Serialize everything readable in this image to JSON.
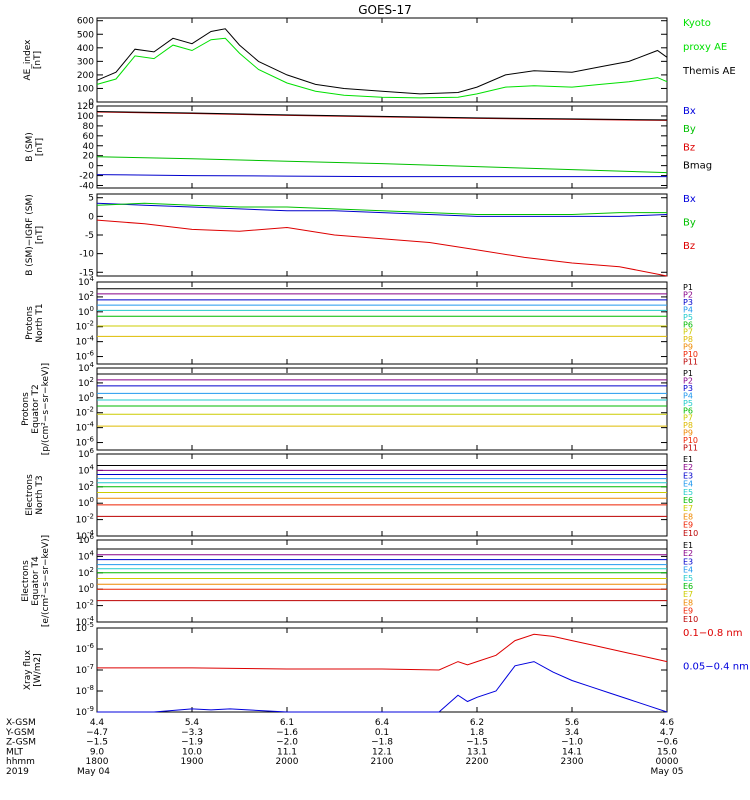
{
  "title": "GOES-17",
  "panels": [
    {
      "id": "ae",
      "ylabel_lines": [
        "AE_index",
        "[nT]"
      ],
      "scale": "linear",
      "ylim": [
        0,
        620
      ],
      "ticks": [
        "600",
        "500",
        "400",
        "300",
        "200",
        "100",
        "0"
      ],
      "tick_values": [
        600,
        500,
        400,
        300,
        200,
        100,
        0
      ],
      "right_labels": [
        {
          "text": "Kyoto",
          "color": "#00e000"
        },
        {
          "text": "proxy AE",
          "color": "#00e000"
        },
        {
          "text": "Themis AE",
          "color": "#000000"
        }
      ]
    },
    {
      "id": "bsm",
      "ylabel_lines": [
        "B (SM)",
        "[nT]"
      ],
      "scale": "linear",
      "ylim": [
        -45,
        120
      ],
      "ticks": [
        "120",
        "100",
        "80",
        "60",
        "40",
        "20",
        "0",
        "-20",
        "-40"
      ],
      "tick_values": [
        120,
        100,
        80,
        60,
        40,
        20,
        0,
        -20,
        -40
      ],
      "right_labels": [
        {
          "text": "Bx",
          "color": "#0000dd"
        },
        {
          "text": "By",
          "color": "#00c000"
        },
        {
          "text": "Bz",
          "color": "#dd0000"
        },
        {
          "text": "Bmag",
          "color": "#000000"
        }
      ]
    },
    {
      "id": "bigrf",
      "ylabel_lines": [
        "B (SM)−IGRF (SM)",
        "[nT]"
      ],
      "scale": "linear",
      "ylim": [
        -16,
        6
      ],
      "ticks": [
        "5",
        "0",
        "-5",
        "-10",
        "-15"
      ],
      "tick_values": [
        5,
        0,
        -5,
        -10,
        -15
      ],
      "right_labels": [
        {
          "text": "Bx",
          "color": "#0000dd"
        },
        {
          "text": "By",
          "color": "#00c000"
        },
        {
          "text": "Bz",
          "color": "#dd0000"
        }
      ]
    },
    {
      "id": "p_t1",
      "ylabel_lines": [
        "Protons",
        "North T1"
      ],
      "scale": "log",
      "ylim_exp": [
        -7,
        4
      ],
      "ticks": [
        "10^4",
        "10^2",
        "10^0",
        "10^-2",
        "10^-4",
        "10^-6"
      ],
      "tick_values": [
        4,
        2,
        0,
        -2,
        -4,
        -6
      ],
      "right_labels": [
        {
          "text": "P1",
          "color": "#000000"
        },
        {
          "text": "P2",
          "color": "#880088"
        },
        {
          "text": "P3",
          "color": "#0000cc"
        },
        {
          "text": "P4",
          "color": "#2299ee"
        },
        {
          "text": "P5",
          "color": "#22cccc"
        },
        {
          "text": "P6",
          "color": "#00bb00"
        },
        {
          "text": "P7",
          "color": "#cccc00"
        },
        {
          "text": "P8",
          "color": "#ddbb00"
        },
        {
          "text": "P9",
          "color": "#ee8800"
        },
        {
          "text": "P10",
          "color": "#ee2200"
        },
        {
          "text": "P11",
          "color": "#bb0000"
        }
      ]
    },
    {
      "id": "p_t2",
      "ylabel_lines": [
        "Protons",
        "Equator T2",
        "[p/(cm²−s−sr−keV)]"
      ],
      "scale": "log",
      "ylim_exp": [
        -7,
        4
      ],
      "ticks": [
        "10^4",
        "10^2",
        "10^0",
        "10^-2",
        "10^-4",
        "10^-6"
      ],
      "tick_values": [
        4,
        2,
        0,
        -2,
        -4,
        -6
      ],
      "right_labels": [
        {
          "text": "P1",
          "color": "#000000"
        },
        {
          "text": "P2",
          "color": "#880088"
        },
        {
          "text": "P3",
          "color": "#0000cc"
        },
        {
          "text": "P4",
          "color": "#2299ee"
        },
        {
          "text": "P5",
          "color": "#22cccc"
        },
        {
          "text": "P6",
          "color": "#00bb00"
        },
        {
          "text": "P7",
          "color": "#cccc00"
        },
        {
          "text": "P8",
          "color": "#ddbb00"
        },
        {
          "text": "P9",
          "color": "#ee8800"
        },
        {
          "text": "P10",
          "color": "#ee2200"
        },
        {
          "text": "P11",
          "color": "#bb0000"
        }
      ]
    },
    {
      "id": "e_t3",
      "ylabel_lines": [
        "Electrons",
        "North T3"
      ],
      "scale": "log",
      "ylim_exp": [
        -4,
        6
      ],
      "ticks": [
        "10^6",
        "10^4",
        "10^2",
        "10^0",
        "10^-2",
        "10^-4"
      ],
      "tick_values": [
        6,
        4,
        2,
        0,
        -2,
        -4
      ],
      "right_labels": [
        {
          "text": "E1",
          "color": "#000000"
        },
        {
          "text": "E2",
          "color": "#880088"
        },
        {
          "text": "E3",
          "color": "#0000cc"
        },
        {
          "text": "E4",
          "color": "#2299ee"
        },
        {
          "text": "E5",
          "color": "#22cccc"
        },
        {
          "text": "E6",
          "color": "#00bb00"
        },
        {
          "text": "E7",
          "color": "#cccc00"
        },
        {
          "text": "E8",
          "color": "#ee8800"
        },
        {
          "text": "E9",
          "color": "#ee2200"
        },
        {
          "text": "E10",
          "color": "#bb0000"
        }
      ]
    },
    {
      "id": "e_t4",
      "ylabel_lines": [
        "Electrons",
        "Equator T4",
        "[e/(cm²−s−sr−keV)]"
      ],
      "scale": "log",
      "ylim_exp": [
        -4,
        6
      ],
      "ticks": [
        "10^6",
        "10^4",
        "10^2",
        "10^0",
        "10^-2",
        "10^-4"
      ],
      "tick_values": [
        6,
        4,
        2,
        0,
        -2,
        -4
      ],
      "right_labels": [
        {
          "text": "E1",
          "color": "#000000"
        },
        {
          "text": "E2",
          "color": "#880088"
        },
        {
          "text": "E3",
          "color": "#0000cc"
        },
        {
          "text": "E4",
          "color": "#2299ee"
        },
        {
          "text": "E5",
          "color": "#22cccc"
        },
        {
          "text": "E6",
          "color": "#00bb00"
        },
        {
          "text": "E7",
          "color": "#cccc00"
        },
        {
          "text": "E8",
          "color": "#ee8800"
        },
        {
          "text": "E9",
          "color": "#ee2200"
        },
        {
          "text": "E10",
          "color": "#bb0000"
        }
      ]
    },
    {
      "id": "xray",
      "ylabel_lines": [
        "Xray flux",
        "[W/m2]"
      ],
      "scale": "log",
      "ylim_exp": [
        -9,
        -5
      ],
      "ticks": [
        "10^-5",
        "10^-6",
        "10^-7",
        "10^-8",
        "10^-9"
      ],
      "tick_values": [
        -5,
        -6,
        -7,
        -8,
        -9
      ],
      "right_labels": [
        {
          "text": "0.1−0.8 nm",
          "color": "#dd0000"
        },
        {
          "text": "0.05−0.4 nm",
          "color": "#0000dd"
        }
      ]
    }
  ],
  "footer": {
    "row_labels": [
      "X-GSM",
      "Y-GSM",
      "Z-GSM",
      "MLT",
      "hhmm",
      "2019"
    ],
    "columns": [
      {
        "values": [
          "4.4",
          "−4.7",
          "−1.5",
          "9.0",
          "1800",
          "May 04"
        ]
      },
      {
        "values": [
          "5.4",
          "−3.3",
          "−1.9",
          "10.0",
          "1900",
          ""
        ]
      },
      {
        "values": [
          "6.1",
          "−1.6",
          "−2.0",
          "11.1",
          "2000",
          ""
        ]
      },
      {
        "values": [
          "6.4",
          "0.1",
          "−1.8",
          "12.1",
          "2100",
          ""
        ]
      },
      {
        "values": [
          "6.2",
          "1.8",
          "−1.5",
          "13.1",
          "2200",
          ""
        ]
      },
      {
        "values": [
          "5.6",
          "3.4",
          "−1.0",
          "14.1",
          "2300",
          ""
        ]
      },
      {
        "values": [
          "4.6",
          "4.7",
          "−0.6",
          "15.0",
          "0000",
          "May 05"
        ]
      }
    ]
  },
  "chart_data": {
    "type": "line",
    "title": "GOES-17",
    "x_unit": "hours since 18:00 UT, 2019 May 04",
    "x_ticks": [
      "1800",
      "1900",
      "2000",
      "2100",
      "2200",
      "2300",
      "0000"
    ],
    "series": [
      {
        "panel": "ae",
        "name": "Themis AE",
        "color": "#000000",
        "x": [
          0,
          0.2,
          0.4,
          0.6,
          0.8,
          1.0,
          1.2,
          1.35,
          1.5,
          1.7,
          2.0,
          2.3,
          2.6,
          3.0,
          3.4,
          3.8,
          4.0,
          4.3,
          4.6,
          5.0,
          5.3,
          5.6,
          5.9,
          6.0
        ],
        "y": [
          160,
          220,
          390,
          370,
          470,
          430,
          520,
          540,
          420,
          300,
          200,
          130,
          100,
          80,
          60,
          70,
          110,
          200,
          230,
          220,
          260,
          300,
          380,
          330
        ]
      },
      {
        "panel": "ae",
        "name": "Kyoto proxy AE",
        "color": "#00e000",
        "x": [
          0,
          0.2,
          0.4,
          0.6,
          0.8,
          1.0,
          1.2,
          1.35,
          1.5,
          1.7,
          2.0,
          2.3,
          2.6,
          3.0,
          3.4,
          3.8,
          4.0,
          4.3,
          4.6,
          5.0,
          5.3,
          5.6,
          5.9,
          6.0
        ],
        "y": [
          130,
          170,
          340,
          320,
          420,
          380,
          460,
          470,
          360,
          240,
          140,
          80,
          50,
          35,
          30,
          35,
          60,
          110,
          120,
          110,
          130,
          150,
          180,
          150
        ]
      },
      {
        "panel": "bsm",
        "name": "Bz",
        "color": "#cc0000",
        "x": [
          0,
          1,
          2,
          3,
          4,
          5,
          6
        ],
        "y": [
          108,
          105,
          101,
          98,
          95,
          93,
          91
        ]
      },
      {
        "panel": "bsm",
        "name": "Bmag",
        "color": "#000000",
        "x": [
          0,
          1,
          2,
          3,
          4,
          5,
          6
        ],
        "y": [
          109,
          106,
          102,
          99,
          96,
          94,
          92
        ]
      },
      {
        "panel": "bsm",
        "name": "By",
        "color": "#00c000",
        "x": [
          0,
          1,
          2,
          3,
          4,
          5,
          6
        ],
        "y": [
          18,
          14,
          9,
          4,
          -2,
          -8,
          -14
        ]
      },
      {
        "panel": "bsm",
        "name": "Bx",
        "color": "#0000cc",
        "x": [
          0,
          1,
          2,
          3,
          4,
          5,
          6
        ],
        "y": [
          -18,
          -20,
          -21,
          -22,
          -22,
          -22,
          -22
        ]
      },
      {
        "panel": "bigrf",
        "name": "Bx",
        "color": "#0000cc",
        "x": [
          0,
          0.5,
          1,
          1.5,
          2,
          2.5,
          3,
          3.5,
          4,
          4.5,
          5,
          5.5,
          6
        ],
        "y": [
          3.5,
          3,
          2.5,
          2,
          1.5,
          1.5,
          1,
          0.5,
          0,
          0,
          0,
          0,
          0.5
        ]
      },
      {
        "panel": "bigrf",
        "name": "By",
        "color": "#00c000",
        "x": [
          0,
          0.5,
          1,
          1.5,
          2,
          2.5,
          3,
          3.5,
          4,
          4.5,
          5,
          5.5,
          6
        ],
        "y": [
          3,
          3.5,
          3,
          2.5,
          2.5,
          2,
          1.5,
          1,
          0.5,
          0.5,
          0.5,
          1,
          1
        ]
      },
      {
        "panel": "bigrf",
        "name": "Bz",
        "color": "#dd0000",
        "x": [
          0,
          0.5,
          1,
          1.5,
          2,
          2.5,
          3,
          3.5,
          4,
          4.5,
          5,
          5.5,
          6
        ],
        "y": [
          -1,
          -2,
          -3.5,
          -4,
          -3,
          -5,
          -6,
          -7,
          -9,
          -11,
          -12.5,
          -13.5,
          -16
        ]
      },
      {
        "panel": "p_t1",
        "name": "P1",
        "color": "#000000",
        "level_exp": 3.1
      },
      {
        "panel": "p_t1",
        "name": "P2",
        "color": "#880088",
        "level_exp": 2.4
      },
      {
        "panel": "p_t1",
        "name": "P3",
        "color": "#0000cc",
        "level_exp": 1.6
      },
      {
        "panel": "p_t1",
        "name": "P4",
        "color": "#2299ee",
        "level_exp": 0.9
      },
      {
        "panel": "p_t1",
        "name": "P5",
        "color": "#22cccc",
        "level_exp": 0.2
      },
      {
        "panel": "p_t1",
        "name": "P6",
        "color": "#00bb00",
        "level_exp": -0.6
      },
      {
        "panel": "p_t1",
        "name": "P7",
        "color": "#cccc00",
        "level_exp": -1.9
      },
      {
        "panel": "p_t1",
        "name": "P8",
        "color": "#ddbb00",
        "level_exp": -3.3
      },
      {
        "panel": "p_t2",
        "name": "P1",
        "color": "#000000",
        "level_exp": 3.2
      },
      {
        "panel": "p_t2",
        "name": "P2",
        "color": "#880088",
        "level_exp": 2.4
      },
      {
        "panel": "p_t2",
        "name": "P3",
        "color": "#0000cc",
        "level_exp": 1.6
      },
      {
        "panel": "p_t2",
        "name": "P4",
        "color": "#2299ee",
        "level_exp": 0.6
      },
      {
        "panel": "p_t2",
        "name": "P5",
        "color": "#22cccc",
        "level_exp": -0.3
      },
      {
        "panel": "p_t2",
        "name": "P6",
        "color": "#00bb00",
        "level_exp": -1.1
      },
      {
        "panel": "p_t2",
        "name": "P7",
        "color": "#cccc00",
        "level_exp": -2.2
      },
      {
        "panel": "p_t2",
        "name": "P8",
        "color": "#ddbb00",
        "level_exp": -3.8
      },
      {
        "panel": "e_t3",
        "name": "E1",
        "color": "#000000",
        "level_exp": 4.6
      },
      {
        "panel": "e_t3",
        "name": "E2",
        "color": "#880088",
        "level_exp": 4.0
      },
      {
        "panel": "e_t3",
        "name": "E3",
        "color": "#0000cc",
        "level_exp": 3.5
      },
      {
        "panel": "e_t3",
        "name": "E4",
        "color": "#2299ee",
        "level_exp": 3.0
      },
      {
        "panel": "e_t3",
        "name": "E5",
        "color": "#22cccc",
        "level_exp": 2.5
      },
      {
        "panel": "e_t3",
        "name": "E6",
        "color": "#00bb00",
        "level_exp": 2.0
      },
      {
        "panel": "e_t3",
        "name": "E7",
        "color": "#cccc00",
        "level_exp": 1.3
      },
      {
        "panel": "e_t3",
        "name": "E8",
        "color": "#ee8800",
        "level_exp": 0.6
      },
      {
        "panel": "e_t3",
        "name": "E9",
        "color": "#ee2200",
        "level_exp": -0.2
      },
      {
        "panel": "e_t3",
        "name": "E10",
        "color": "#bb0000",
        "level_exp": -1.6
      },
      {
        "panel": "e_t4",
        "name": "E1",
        "color": "#000000",
        "level_exp": 4.9
      },
      {
        "panel": "e_t4",
        "name": "E2",
        "color": "#880088",
        "level_exp": 4.2
      },
      {
        "panel": "e_t4",
        "name": "E3",
        "color": "#0000cc",
        "level_exp": 3.6
      },
      {
        "panel": "e_t4",
        "name": "E4",
        "color": "#2299ee",
        "level_exp": 3.0
      },
      {
        "panel": "e_t4",
        "name": "E5",
        "color": "#22cccc",
        "level_exp": 2.5
      },
      {
        "panel": "e_t4",
        "name": "E6",
        "color": "#00bb00",
        "level_exp": 2.0
      },
      {
        "panel": "e_t4",
        "name": "E7",
        "color": "#cccc00",
        "level_exp": 1.3
      },
      {
        "panel": "e_t4",
        "name": "E8",
        "color": "#ee8800",
        "level_exp": 0.6
      },
      {
        "panel": "e_t4",
        "name": "E9",
        "color": "#ee2200",
        "level_exp": 0.0
      },
      {
        "panel": "e_t4",
        "name": "E10",
        "color": "#bb0000",
        "level_exp": -1.4
      },
      {
        "panel": "xray",
        "name": "0.1−0.8 nm",
        "color": "#dd0000",
        "x": [
          0,
          1,
          2,
          3,
          3.6,
          3.8,
          3.9,
          4.0,
          4.2,
          4.4,
          4.6,
          4.8,
          5.0,
          5.2,
          5.4,
          5.6,
          5.8,
          6.0
        ],
        "y": [
          -6.9,
          -6.9,
          -6.95,
          -6.95,
          -7.0,
          -6.6,
          -6.75,
          -6.6,
          -6.3,
          -5.6,
          -5.3,
          -5.4,
          -5.6,
          -5.8,
          -6.0,
          -6.2,
          -6.4,
          -6.6
        ]
      },
      {
        "panel": "xray",
        "name": "0.05−0.4 nm",
        "color": "#0000dd",
        "x": [
          0,
          0.6,
          1.0,
          1.2,
          1.4,
          2.0,
          3.0,
          3.6,
          3.8,
          3.9,
          4.0,
          4.2,
          4.4,
          4.6,
          4.8,
          5.0,
          5.2,
          5.4,
          5.6,
          5.8,
          6.0
        ],
        "y": [
          -9.0,
          -9.0,
          -8.85,
          -8.9,
          -8.85,
          -9.0,
          -9.0,
          -9.0,
          -8.2,
          -8.5,
          -8.3,
          -8.0,
          -6.8,
          -6.6,
          -7.1,
          -7.5,
          -7.8,
          -8.1,
          -8.4,
          -8.7,
          -9.0
        ]
      }
    ]
  }
}
